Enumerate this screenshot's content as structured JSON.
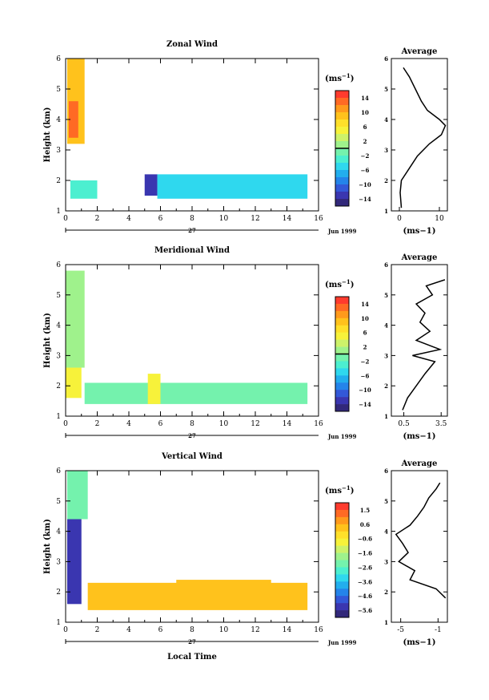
{
  "x_axis_label": "Local Time",
  "date_label": "Jun 1999",
  "day_label": "27",
  "units_label": "(ms",
  "units_exp": "−1",
  "chart_data": [
    {
      "type": "heatmap",
      "title": "Zonal Wind",
      "ylabel": "Height (km)",
      "xlabel": "",
      "xlim": [
        0,
        16
      ],
      "ylim": [
        1,
        6
      ],
      "x_ticks": [
        0,
        2,
        4,
        6,
        8,
        10,
        12,
        14,
        16
      ],
      "y_ticks": [
        1,
        2,
        3,
        4,
        5,
        6
      ],
      "colorbar": {
        "ticks": [
          "14",
          "10",
          "6",
          "2",
          "−2",
          "−6",
          "−10",
          "−14"
        ],
        "range": [
          -16,
          16
        ],
        "zero_line": 0,
        "colors": [
          "#ff3b2e",
          "#ff6a24",
          "#ff9a1c",
          "#ffc21c",
          "#ffe02a",
          "#f7f23a",
          "#cdf26a",
          "#9ff28c",
          "#74f2ad",
          "#4cefd0",
          "#2fd8ee",
          "#22aeee",
          "#2484ea",
          "#3358d8",
          "#3a36b0",
          "#32287a"
        ]
      },
      "regions": [
        {
          "x": [
            0.1,
            1.2
          ],
          "y": [
            3.2,
            6.0
          ],
          "value": 9
        },
        {
          "x": [
            0.2,
            0.8
          ],
          "y": [
            3.4,
            4.6
          ],
          "value": 13
        },
        {
          "x": [
            0.3,
            2.0
          ],
          "y": [
            1.4,
            2.0
          ],
          "value": -3
        },
        {
          "x": [
            5.0,
            5.8
          ],
          "y": [
            1.5,
            2.2
          ],
          "value": -12
        },
        {
          "x": [
            5.8,
            15.3
          ],
          "y": [
            1.4,
            2.2
          ],
          "value": -4
        }
      ],
      "average": {
        "title": "Average",
        "xlabel": "(ms−1)",
        "xlim": [
          -2,
          12
        ],
        "x_ticks": [
          0,
          10
        ],
        "height": [
          1.1,
          1.6,
          2.0,
          2.4,
          2.8,
          3.2,
          3.5,
          3.8,
          4.0,
          4.3,
          4.6,
          5.0,
          5.4,
          5.7
        ],
        "value": [
          0.5,
          0.2,
          0.5,
          2.5,
          4.5,
          7.5,
          10.5,
          11.5,
          10.0,
          7.0,
          5.5,
          4.0,
          2.5,
          1.0
        ]
      }
    },
    {
      "type": "heatmap",
      "title": "Meridional Wind",
      "ylabel": "Height (km)",
      "xlabel": "",
      "xlim": [
        0,
        16
      ],
      "ylim": [
        1,
        6
      ],
      "x_ticks": [
        0,
        2,
        4,
        6,
        8,
        10,
        12,
        14,
        16
      ],
      "y_ticks": [
        1,
        2,
        3,
        4,
        5,
        6
      ],
      "colorbar": {
        "ticks": [
          "14",
          "10",
          "6",
          "2",
          "−2",
          "−6",
          "−10",
          "−14"
        ],
        "range": [
          -16,
          16
        ],
        "zero_line": 0,
        "colors": [
          "#ff3b2e",
          "#ff6a24",
          "#ff9a1c",
          "#ffc21c",
          "#ffe02a",
          "#f7f23a",
          "#cdf26a",
          "#9ff28c",
          "#74f2ad",
          "#4cefd0",
          "#2fd8ee",
          "#22aeee",
          "#2484ea",
          "#3358d8",
          "#3a36b0",
          "#32287a"
        ]
      },
      "regions": [
        {
          "x": [
            0.0,
            1.2
          ],
          "y": [
            2.6,
            5.8
          ],
          "value": 2
        },
        {
          "x": [
            0.0,
            1.0
          ],
          "y": [
            1.6,
            2.6
          ],
          "value": 5
        },
        {
          "x": [
            1.2,
            15.3
          ],
          "y": [
            1.4,
            2.1
          ],
          "value": -1
        },
        {
          "x": [
            5.2,
            6.0
          ],
          "y": [
            1.4,
            2.4
          ],
          "value": 5
        }
      ],
      "average": {
        "title": "Average",
        "xlabel": "(ms−1)",
        "xlim": [
          -0.5,
          4.0
        ],
        "x_ticks": [
          0.5,
          3.5
        ],
        "height": [
          1.2,
          1.6,
          2.0,
          2.4,
          2.8,
          3.0,
          3.2,
          3.5,
          3.8,
          4.1,
          4.4,
          4.7,
          5.0,
          5.3,
          5.5
        ],
        "value": [
          0.4,
          0.8,
          1.5,
          2.2,
          3.0,
          1.2,
          3.4,
          1.5,
          2.6,
          1.8,
          2.2,
          1.5,
          2.8,
          2.3,
          3.8
        ]
      }
    },
    {
      "type": "heatmap",
      "title": "Vertical Wind",
      "ylabel": "Height (km)",
      "xlabel": "Local Time",
      "xlim": [
        0,
        16
      ],
      "ylim": [
        1,
        6
      ],
      "x_ticks": [
        0,
        2,
        4,
        6,
        8,
        10,
        12,
        14,
        16
      ],
      "y_ticks": [
        1,
        2,
        3,
        4,
        5,
        6
      ],
      "colorbar": {
        "ticks": [
          "1.5",
          "0.6",
          "−0.6",
          "−1.6",
          "−2.6",
          "−3.6",
          "−4.6",
          "−5.6"
        ],
        "range": [
          -6,
          2
        ],
        "zero_line": null,
        "colors": [
          "#ff3b2e",
          "#ff6a24",
          "#ff9a1c",
          "#ffc21c",
          "#ffe02a",
          "#f7f23a",
          "#cdf26a",
          "#9ff28c",
          "#74f2ad",
          "#4cefd0",
          "#2fd8ee",
          "#22aeee",
          "#2484ea",
          "#3358d8",
          "#3a36b0",
          "#32287a"
        ]
      },
      "regions": [
        {
          "x": [
            0.1,
            1.4
          ],
          "y": [
            4.4,
            6.0
          ],
          "value": -2.0
        },
        {
          "x": [
            0.1,
            1.0
          ],
          "y": [
            1.6,
            4.4
          ],
          "value": -5.2
        },
        {
          "x": [
            1.4,
            15.3
          ],
          "y": [
            1.4,
            2.3
          ],
          "value": 0.1
        },
        {
          "x": [
            7.0,
            13.0
          ],
          "y": [
            2.2,
            2.4
          ],
          "value": 0.3
        }
      ],
      "average": {
        "title": "Average",
        "xlabel": "(ms−1)",
        "xlim": [
          -6,
          0
        ],
        "x_ticks": [
          -5,
          -1
        ],
        "height": [
          1.8,
          2.1,
          2.4,
          2.7,
          3.0,
          3.3,
          3.6,
          3.9,
          4.2,
          4.5,
          4.8,
          5.1,
          5.4,
          5.6
        ],
        "value": [
          -0.2,
          -1.2,
          -4.0,
          -3.5,
          -5.2,
          -4.2,
          -4.8,
          -5.5,
          -4.0,
          -3.2,
          -2.5,
          -2.0,
          -1.2,
          -0.8
        ]
      }
    }
  ]
}
